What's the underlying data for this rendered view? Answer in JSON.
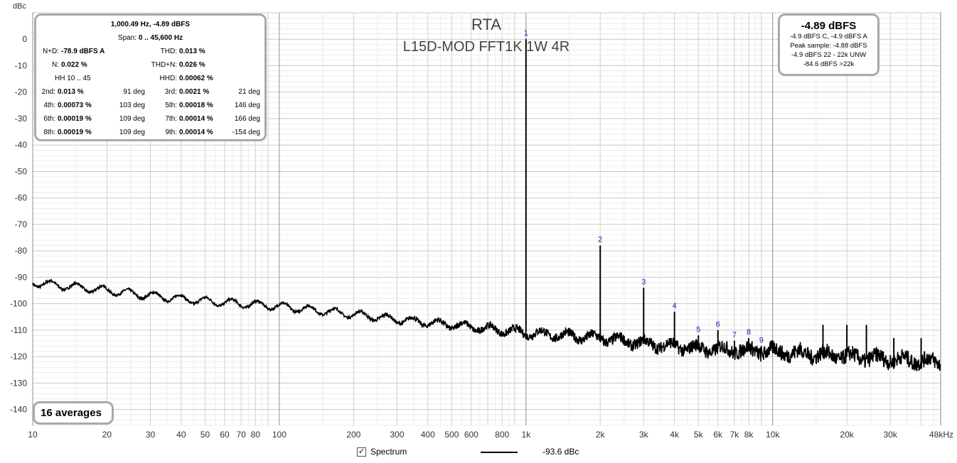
{
  "chart_data": {
    "type": "line",
    "title": "RTA",
    "subtitle": "L15D-MOD FFT1K 1W 4R",
    "ylabel": "dBc",
    "xscale": "log",
    "xlim": [
      10,
      48000
    ],
    "ylim": [
      -146,
      10
    ],
    "yticks": [
      0,
      -10,
      -20,
      -30,
      -40,
      -50,
      -60,
      -70,
      -80,
      -90,
      -100,
      -110,
      -120,
      -130,
      -140
    ],
    "ytick_labels": [
      "0",
      "-10",
      "-20",
      "-30",
      "-40",
      "-50",
      "-60",
      "-70",
      "-80",
      "-90",
      "-100",
      "-110",
      "-120",
      "-130",
      "-140"
    ],
    "xticks": [
      10,
      20,
      30,
      40,
      50,
      60,
      70,
      80,
      100,
      200,
      300,
      400,
      500,
      600,
      800,
      1000,
      2000,
      3000,
      4000,
      5000,
      6000,
      7000,
      8000,
      10000,
      20000,
      30000,
      48000
    ],
    "xtick_labels": [
      "10",
      "20",
      "30",
      "40",
      "50",
      "60",
      "70",
      "80",
      "100",
      "200",
      "300",
      "400",
      "500",
      "600",
      "800",
      "1k",
      "2k",
      "3k",
      "4k",
      "5k",
      "6k",
      "7k",
      "8k",
      "10k",
      "20k",
      "30k",
      "48kHz"
    ],
    "grid": true,
    "series": [
      {
        "name": "Spectrum",
        "color": "#000000",
        "noise_floor": [
          [
            10,
            -92
          ],
          [
            20,
            -95
          ],
          [
            30,
            -97
          ],
          [
            50,
            -99
          ],
          [
            100,
            -101
          ],
          [
            200,
            -104
          ],
          [
            300,
            -106
          ],
          [
            500,
            -108
          ],
          [
            1000,
            -111
          ],
          [
            2000,
            -113
          ],
          [
            3000,
            -115
          ],
          [
            5000,
            -117
          ],
          [
            10000,
            -118
          ],
          [
            20000,
            -120
          ],
          [
            48000,
            -122
          ]
        ],
        "peaks": [
          {
            "x": 1000,
            "y": 0,
            "label": "1"
          },
          {
            "x": 2000,
            "y": -78,
            "label": "2"
          },
          {
            "x": 3000,
            "y": -94,
            "label": "3"
          },
          {
            "x": 4000,
            "y": -103,
            "label": "4"
          },
          {
            "x": 5000,
            "y": -112,
            "label": "5"
          },
          {
            "x": 6000,
            "y": -110,
            "label": "6"
          },
          {
            "x": 7000,
            "y": -114,
            "label": "7"
          },
          {
            "x": 8000,
            "y": -113,
            "label": "8"
          },
          {
            "x": 9000,
            "y": -116,
            "label": "9"
          },
          {
            "x": 10000,
            "y": -114,
            "label": ""
          },
          {
            "x": 16000,
            "y": -108,
            "label": ""
          },
          {
            "x": 20000,
            "y": -108,
            "label": ""
          },
          {
            "x": 24000,
            "y": -108,
            "label": ""
          },
          {
            "x": 31000,
            "y": -113,
            "label": ""
          },
          {
            "x": 40000,
            "y": -113,
            "label": ""
          }
        ]
      }
    ]
  },
  "stats": {
    "header1": "1,000.49 Hz, -4.89 dBFS",
    "span_label": "Span:",
    "span_value": "0 .. 45,600 Hz",
    "nd_label": "N+D:",
    "nd_value": "-78.9 dBFS A",
    "thd_label": "THD:",
    "thd_value": "0.013 %",
    "n_label": "N:",
    "n_value": "0.022 %",
    "thdn_label": "THD+N:",
    "thdn_value": "0.026 %",
    "hh_label": "HH 10 .. 45",
    "hhd_label": "HHD:",
    "hhd_value": "0.00062 %",
    "harmonics": [
      {
        "l1": "2nd:",
        "v1": "0.013 %",
        "d1": "91 deg",
        "l2": "3rd:",
        "v2": "0.0021 %",
        "d2": "21 deg"
      },
      {
        "l1": "4th:",
        "v1": "0.00073 %",
        "d1": "103 deg",
        "l2": "5th:",
        "v2": "0.00018 %",
        "d2": "146 deg"
      },
      {
        "l1": "6th:",
        "v1": "0.00019 %",
        "d1": "109 deg",
        "l2": "7th:",
        "v2": "0.00014 %",
        "d2": "166 deg"
      },
      {
        "l1": "8th:",
        "v1": "0.00019 %",
        "d1": "109 deg",
        "l2": "9th:",
        "v2": "0.00014 %",
        "d2": "-154 deg"
      }
    ]
  },
  "level": {
    "main": "-4.89 dBFS",
    "line1": "-4.9 dBFS C, -4.9 dBFS A",
    "line2": "Peak sample: -4.88 dBFS",
    "line3": "-4.9 dBFS 22 - 22k UNW",
    "line4": "-84.6 dBFS >22k"
  },
  "averages": "16 averages",
  "legend": {
    "checkbox_glyph": "✓",
    "label": "Spectrum",
    "value": "-93.6 dBc"
  }
}
